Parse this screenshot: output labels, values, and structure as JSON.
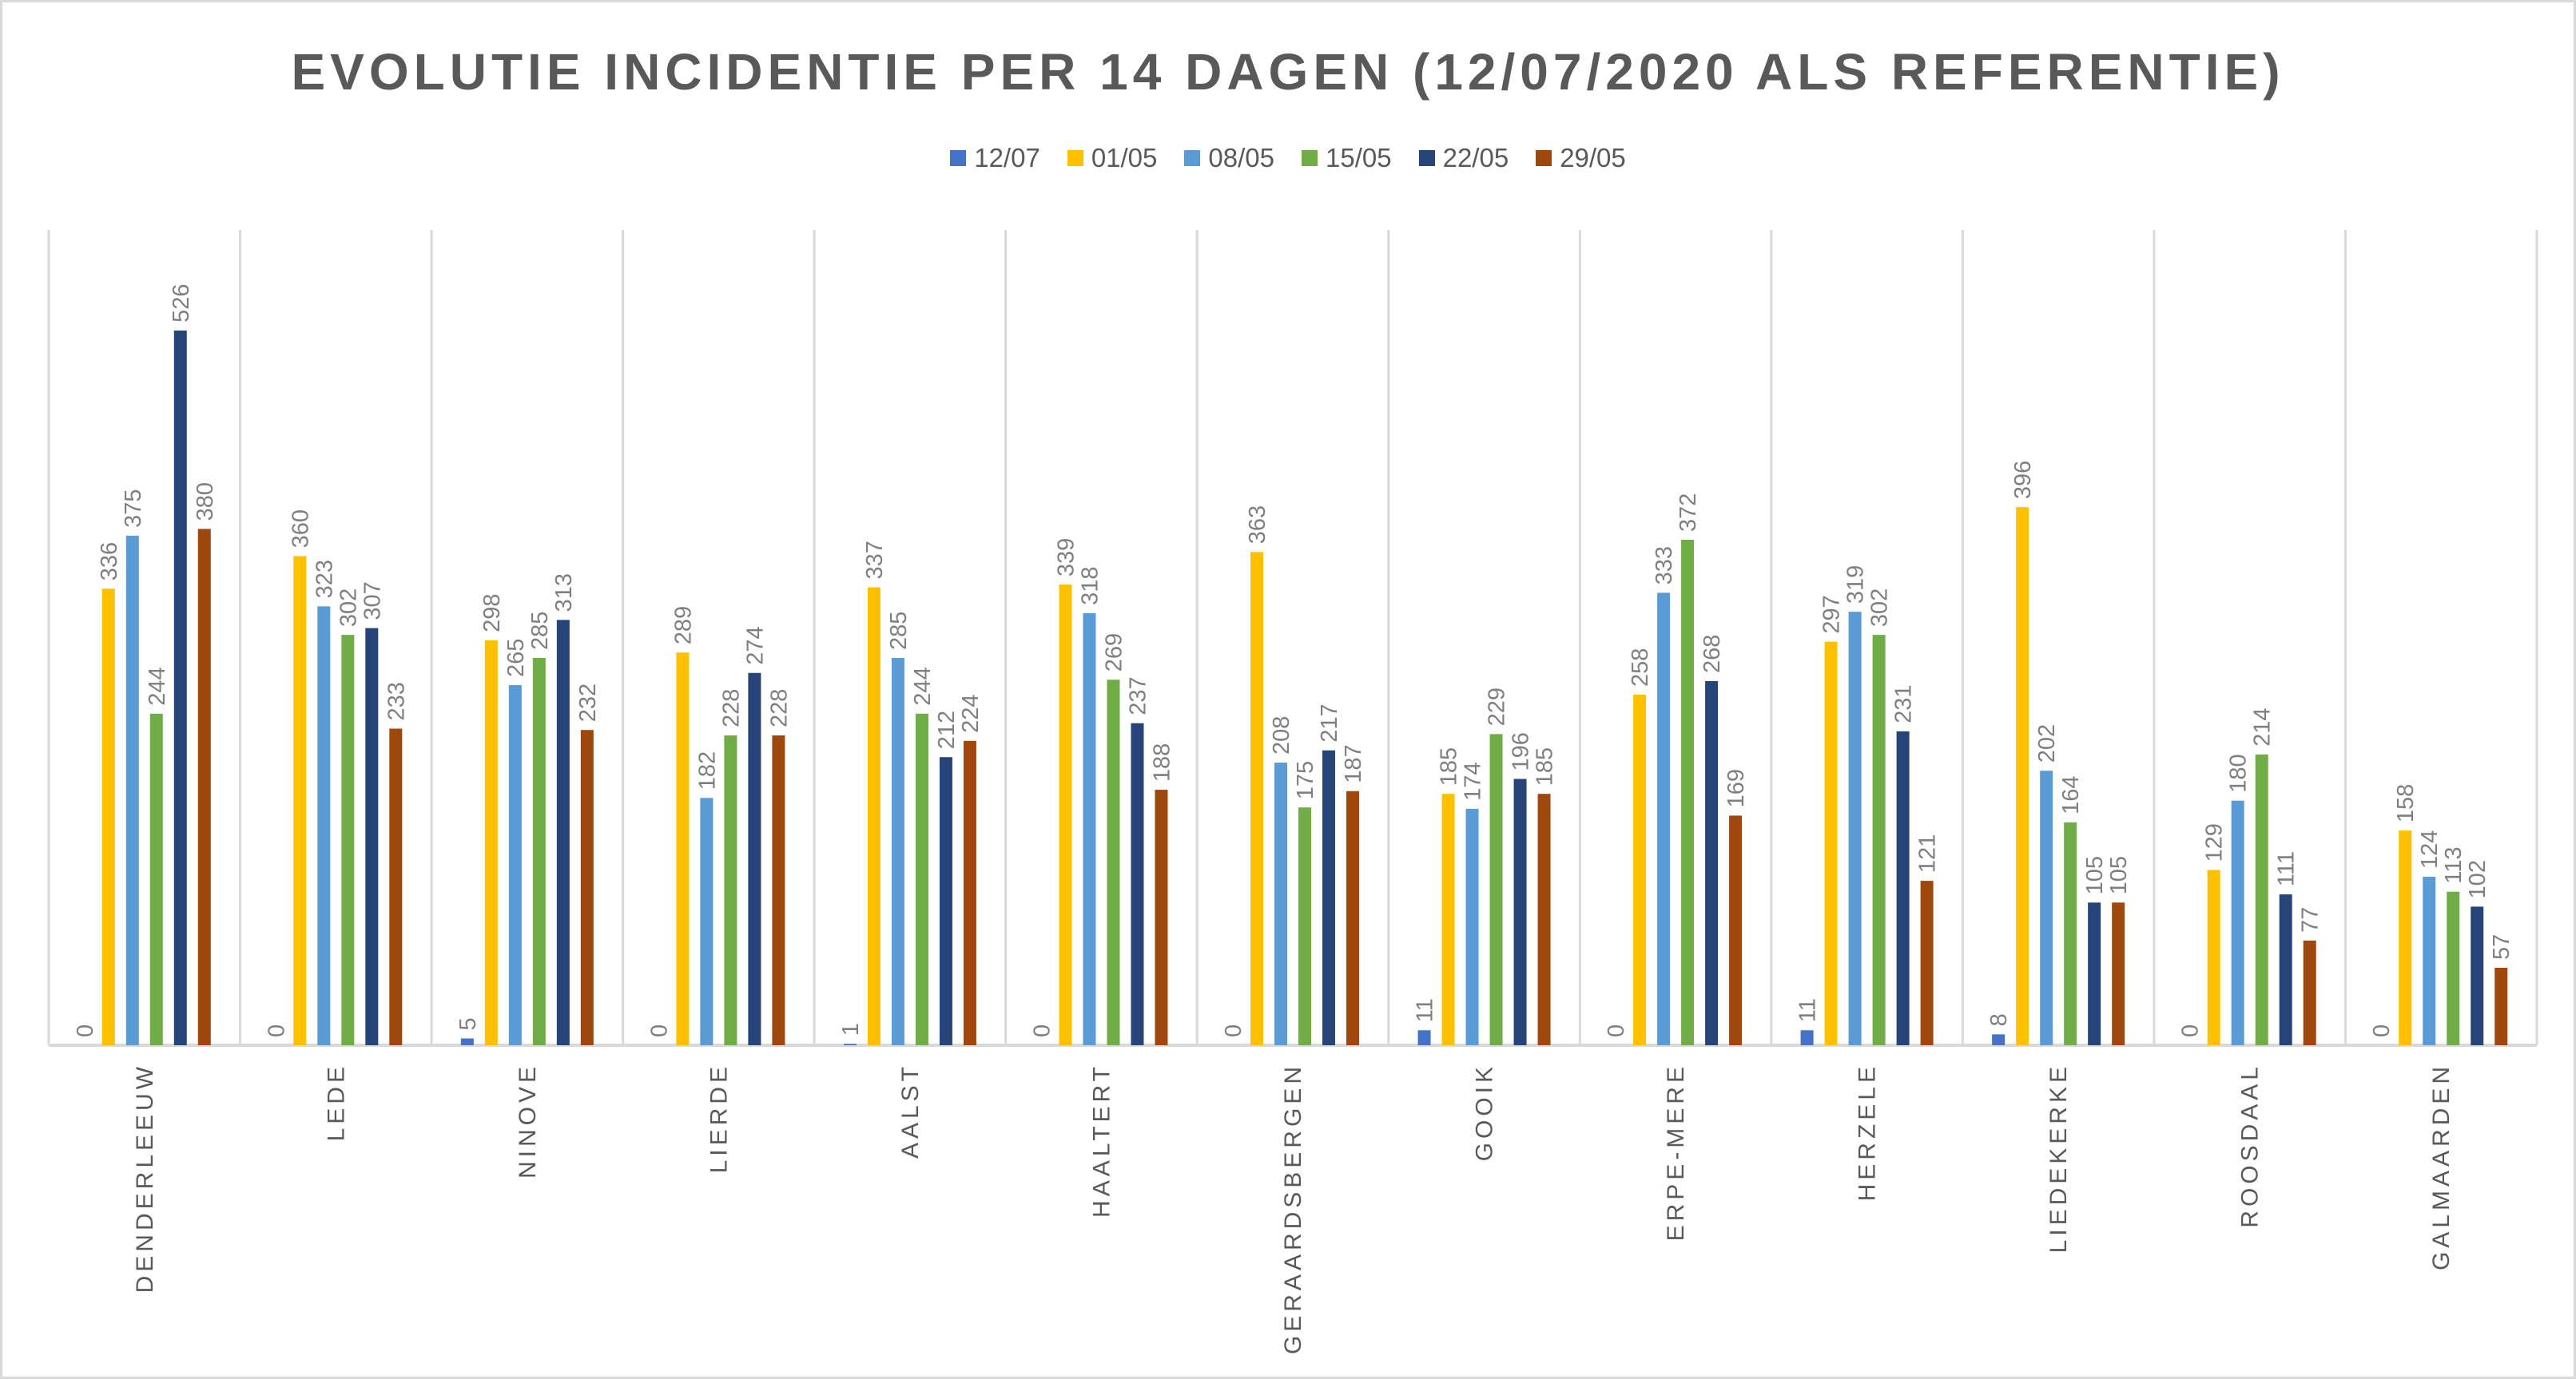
{
  "chart_data": {
    "type": "bar",
    "title": "EVOLUTIE INCIDENTIE PER 14 DAGEN (12/07/2020 ALS REFERENTIE)",
    "xlabel": "",
    "ylabel": "",
    "ylim": [
      0,
      600
    ],
    "grid": "vertical category separators",
    "legend_position": "top",
    "categories": [
      "DENDERLEEUW",
      "LEDE",
      "NINOVE",
      "LIERDE",
      "AALST",
      "HAALTERT",
      "GERAARDSBERGEN",
      "GOOIK",
      "ERPE-MERE",
      "HERZELE",
      "LIEDEKERKE",
      "ROOSDAAL",
      "GALMAARDEN"
    ],
    "series": [
      {
        "name": "12/07",
        "color": "#4472c4",
        "values": [
          0,
          0,
          5,
          0,
          1,
          0,
          0,
          11,
          0,
          11,
          8,
          0,
          0
        ]
      },
      {
        "name": "01/05",
        "color": "#ffc000",
        "values": [
          336,
          360,
          298,
          289,
          337,
          339,
          363,
          185,
          258,
          297,
          396,
          129,
          158
        ]
      },
      {
        "name": "08/05",
        "color": "#5b9bd5",
        "values": [
          375,
          323,
          265,
          182,
          285,
          318,
          208,
          174,
          333,
          319,
          202,
          180,
          124
        ]
      },
      {
        "name": "15/05",
        "color": "#70ad47",
        "values": [
          244,
          302,
          285,
          228,
          244,
          269,
          175,
          229,
          372,
          302,
          164,
          214,
          113
        ]
      },
      {
        "name": "22/05",
        "color": "#264478",
        "values": [
          526,
          307,
          313,
          274,
          212,
          237,
          217,
          196,
          268,
          231,
          105,
          111,
          102
        ]
      },
      {
        "name": "29/05",
        "color": "#9e480e",
        "values": [
          380,
          233,
          232,
          228,
          224,
          188,
          187,
          185,
          169,
          121,
          105,
          77,
          57
        ]
      }
    ]
  }
}
